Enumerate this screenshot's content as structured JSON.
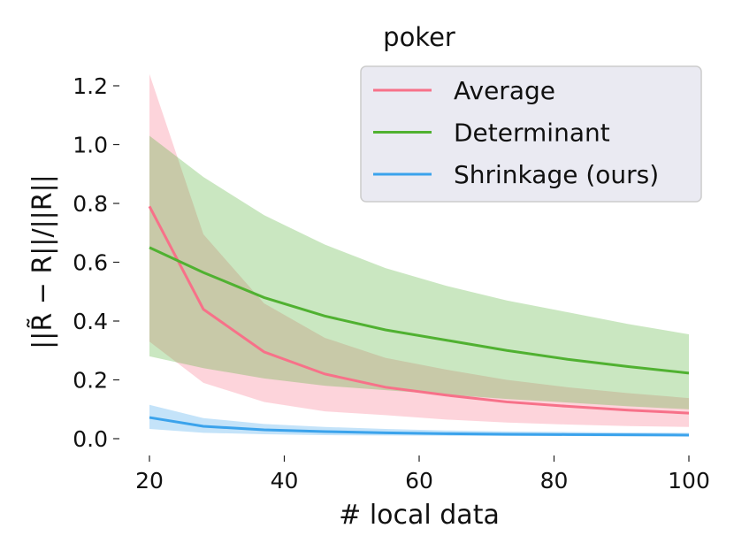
{
  "chart_data": {
    "type": "line",
    "title": "poker",
    "xlabel": "# local data",
    "ylabel": "||R̃ − R||/||R||",
    "xlim": [
      16.5,
      103.5
    ],
    "ylim": [
      -0.06,
      1.26
    ],
    "xticks": [
      20,
      40,
      60,
      80,
      100
    ],
    "xtick_labels": [
      "20",
      "40",
      "60",
      "80",
      "100"
    ],
    "yticks": [
      0.0,
      0.2,
      0.4,
      0.6,
      0.8,
      1.0,
      1.2
    ],
    "ytick_labels": [
      "0.0",
      "0.2",
      "0.4",
      "0.6",
      "0.8",
      "1.0",
      "1.2"
    ],
    "grid": false,
    "legend_placement": "top-right",
    "x": [
      20,
      28,
      37,
      46,
      55,
      64,
      73,
      82,
      91,
      100
    ],
    "series": [
      {
        "name": "Average",
        "color": "#f77189",
        "values": [
          0.79,
          0.44,
          0.295,
          0.22,
          0.175,
          0.148,
          0.125,
          0.11,
          0.097,
          0.087
        ],
        "upper": [
          1.24,
          0.695,
          0.46,
          0.343,
          0.275,
          0.235,
          0.2,
          0.175,
          0.155,
          0.138
        ],
        "lower": [
          0.33,
          0.19,
          0.125,
          0.093,
          0.08,
          0.065,
          0.055,
          0.048,
          0.043,
          0.04
        ]
      },
      {
        "name": "Determinant",
        "color": "#50b131",
        "values": [
          0.65,
          0.565,
          0.48,
          0.417,
          0.37,
          0.335,
          0.3,
          0.27,
          0.245,
          0.223
        ],
        "upper": [
          1.03,
          0.89,
          0.76,
          0.66,
          0.58,
          0.52,
          0.47,
          0.43,
          0.39,
          0.355
        ],
        "lower": [
          0.28,
          0.24,
          0.205,
          0.18,
          0.165,
          0.15,
          0.135,
          0.123,
          0.11,
          0.1
        ]
      },
      {
        "name": "Shrinkage (ours)",
        "color": "#3ba3ec",
        "values": [
          0.072,
          0.042,
          0.03,
          0.024,
          0.02,
          0.017,
          0.015,
          0.014,
          0.013,
          0.012
        ],
        "upper": [
          0.115,
          0.07,
          0.05,
          0.04,
          0.033,
          0.028,
          0.025,
          0.023,
          0.021,
          0.02
        ],
        "lower": [
          0.033,
          0.02,
          0.015,
          0.012,
          0.011,
          0.01,
          0.009,
          0.009,
          0.008,
          0.008
        ]
      }
    ]
  }
}
